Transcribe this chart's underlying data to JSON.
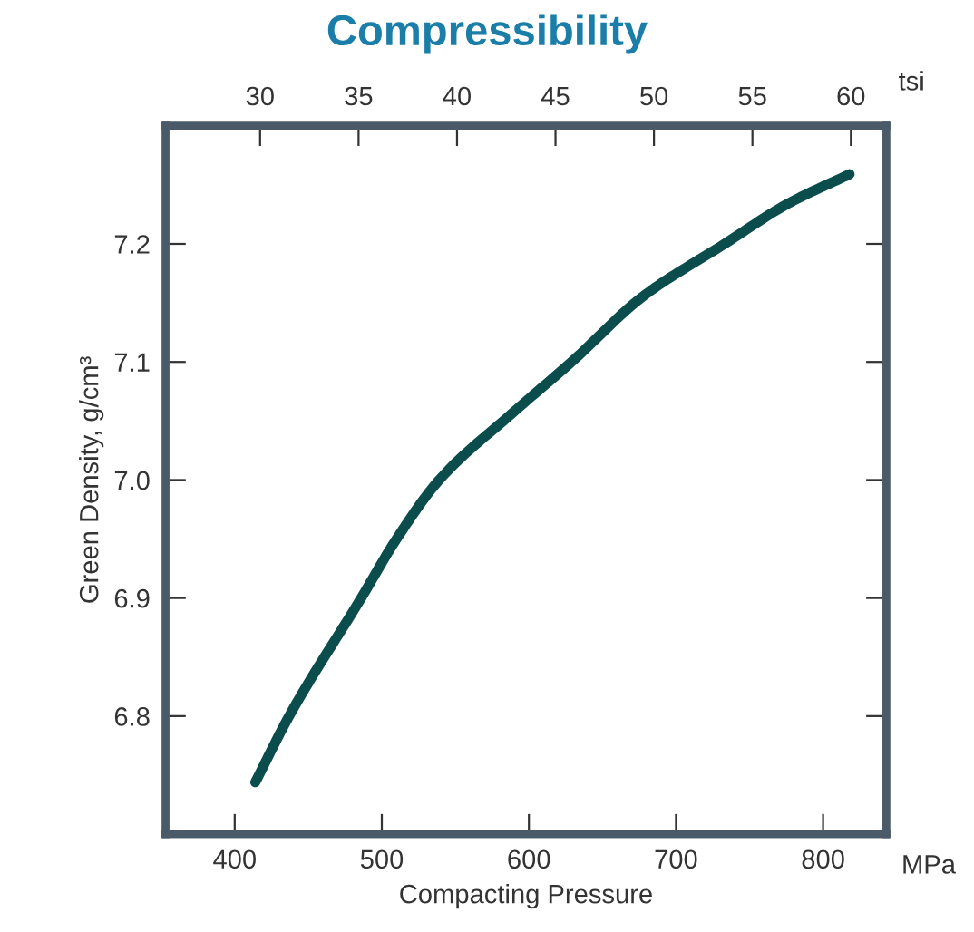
{
  "chart_data": {
    "type": "line",
    "title": "Compressibility",
    "xlabel": "Compacting Pressure",
    "ylabel": "Green Density, g/cm³",
    "x2label": "tsi",
    "annotations": [
      "MPa"
    ],
    "series": [
      {
        "color": "#0b4c4c",
        "x": [
          414,
          437,
          486,
          510,
          539,
          590,
          629,
          677,
          733,
          776,
          818
        ],
        "values": [
          6.744,
          6.8,
          6.9,
          6.95,
          7.0,
          7.058,
          7.1,
          7.155,
          7.2,
          7.234,
          7.259
        ]
      }
    ],
    "xlim": [
      353,
      843
    ],
    "xticks": [
      400,
      500,
      600,
      700,
      800
    ],
    "x2lim": [
      25.2,
      61.8
    ],
    "x2ticks": [
      30,
      35,
      40,
      45,
      50,
      55,
      60
    ],
    "ylim": [
      6.7,
      7.3
    ],
    "yticks": [
      6.8,
      6.9,
      {
        "value": 7.0,
        "label": "7.0"
      },
      7.1,
      7.2
    ],
    "grid": false,
    "marker": "none",
    "line_style": "solid"
  }
}
